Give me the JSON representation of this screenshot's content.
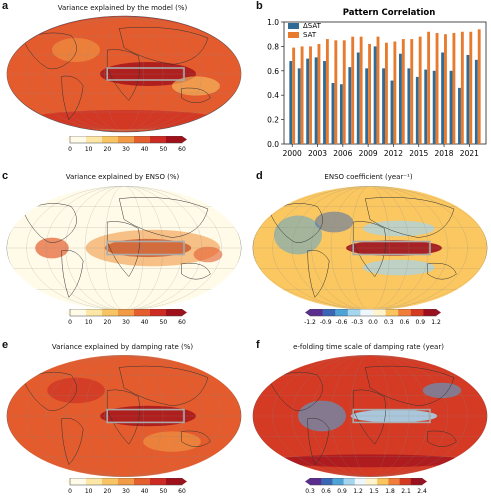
{
  "panels": {
    "a": {
      "letter": "a",
      "title": "Variance explained by the model (%)",
      "colorbar_ticks": [
        "0",
        "10",
        "20",
        "30",
        "40",
        "50",
        "60"
      ]
    },
    "b": {
      "letter": "b",
      "title": "Pattern Correlation"
    },
    "c": {
      "letter": "c",
      "title": "Variance explained by ENSO (%)",
      "colorbar_ticks": [
        "0",
        "10",
        "20",
        "30",
        "40",
        "50",
        "60"
      ]
    },
    "d": {
      "letter": "d",
      "title": "ENSO coefficient (year⁻¹)",
      "colorbar_ticks": [
        "-1.2",
        "-0.9",
        "-0.6",
        "-0.3",
        "0.0",
        "0.3",
        "0.6",
        "0.9",
        "1.2"
      ]
    },
    "e": {
      "letter": "e",
      "title": "Variance explained by damping rate (%)",
      "colorbar_ticks": [
        "0",
        "10",
        "20",
        "30",
        "40",
        "50",
        "60"
      ]
    },
    "f": {
      "letter": "f",
      "title": "e-folding time scale of damping rate (year)",
      "colorbar_ticks": [
        "0.3",
        "0.6",
        "0.9",
        "1.2",
        "1.5",
        "1.8",
        "2.1",
        "2.4"
      ]
    }
  },
  "colors": {
    "dsat": "#2e6c96",
    "sat": "#e87a2e",
    "reds": [
      "#fffbe8",
      "#fde7a6",
      "#f9c464",
      "#f29a45",
      "#e55e2e",
      "#cc2a22",
      "#a0101a"
    ],
    "diverging": [
      "#5b2d8f",
      "#3a66b4",
      "#4ea3d6",
      "#a5d6ee",
      "#eef7fb",
      "#fff4cc",
      "#fbc55e",
      "#f07e3a",
      "#d43a22",
      "#9c0f1e"
    ]
  },
  "chart_data": {
    "type": "bar",
    "title": "Pattern Correlation",
    "categories": [
      2000,
      2001,
      2002,
      2003,
      2004,
      2005,
      2006,
      2007,
      2008,
      2009,
      2010,
      2011,
      2012,
      2013,
      2014,
      2015,
      2016,
      2017,
      2018,
      2019,
      2020,
      2021,
      2022
    ],
    "tick_labels": [
      "2000",
      "2003",
      "2006",
      "2009",
      "2012",
      "2015",
      "2018",
      "2021"
    ],
    "tick_values": [
      2000,
      2003,
      2006,
      2009,
      2012,
      2015,
      2018,
      2021
    ],
    "yticks": [
      "0.0",
      "0.2",
      "0.4",
      "0.6",
      "0.8",
      "1.0"
    ],
    "ylim": [
      0,
      1.0
    ],
    "series": [
      {
        "name": "ΔSAT",
        "values": [
          0.68,
          0.62,
          0.7,
          0.71,
          0.68,
          0.5,
          0.49,
          0.63,
          0.75,
          0.62,
          0.8,
          0.62,
          0.52,
          0.74,
          0.62,
          0.55,
          0.61,
          0.6,
          0.75,
          0.6,
          0.46,
          0.73,
          0.69
        ]
      },
      {
        "name": "SAT",
        "values": [
          0.79,
          0.8,
          0.8,
          0.82,
          0.86,
          0.85,
          0.85,
          0.88,
          0.88,
          0.82,
          0.88,
          0.83,
          0.84,
          0.86,
          0.86,
          0.88,
          0.92,
          0.91,
          0.9,
          0.91,
          0.92,
          0.92,
          0.94
        ]
      }
    ],
    "legend_position": "top-left"
  }
}
